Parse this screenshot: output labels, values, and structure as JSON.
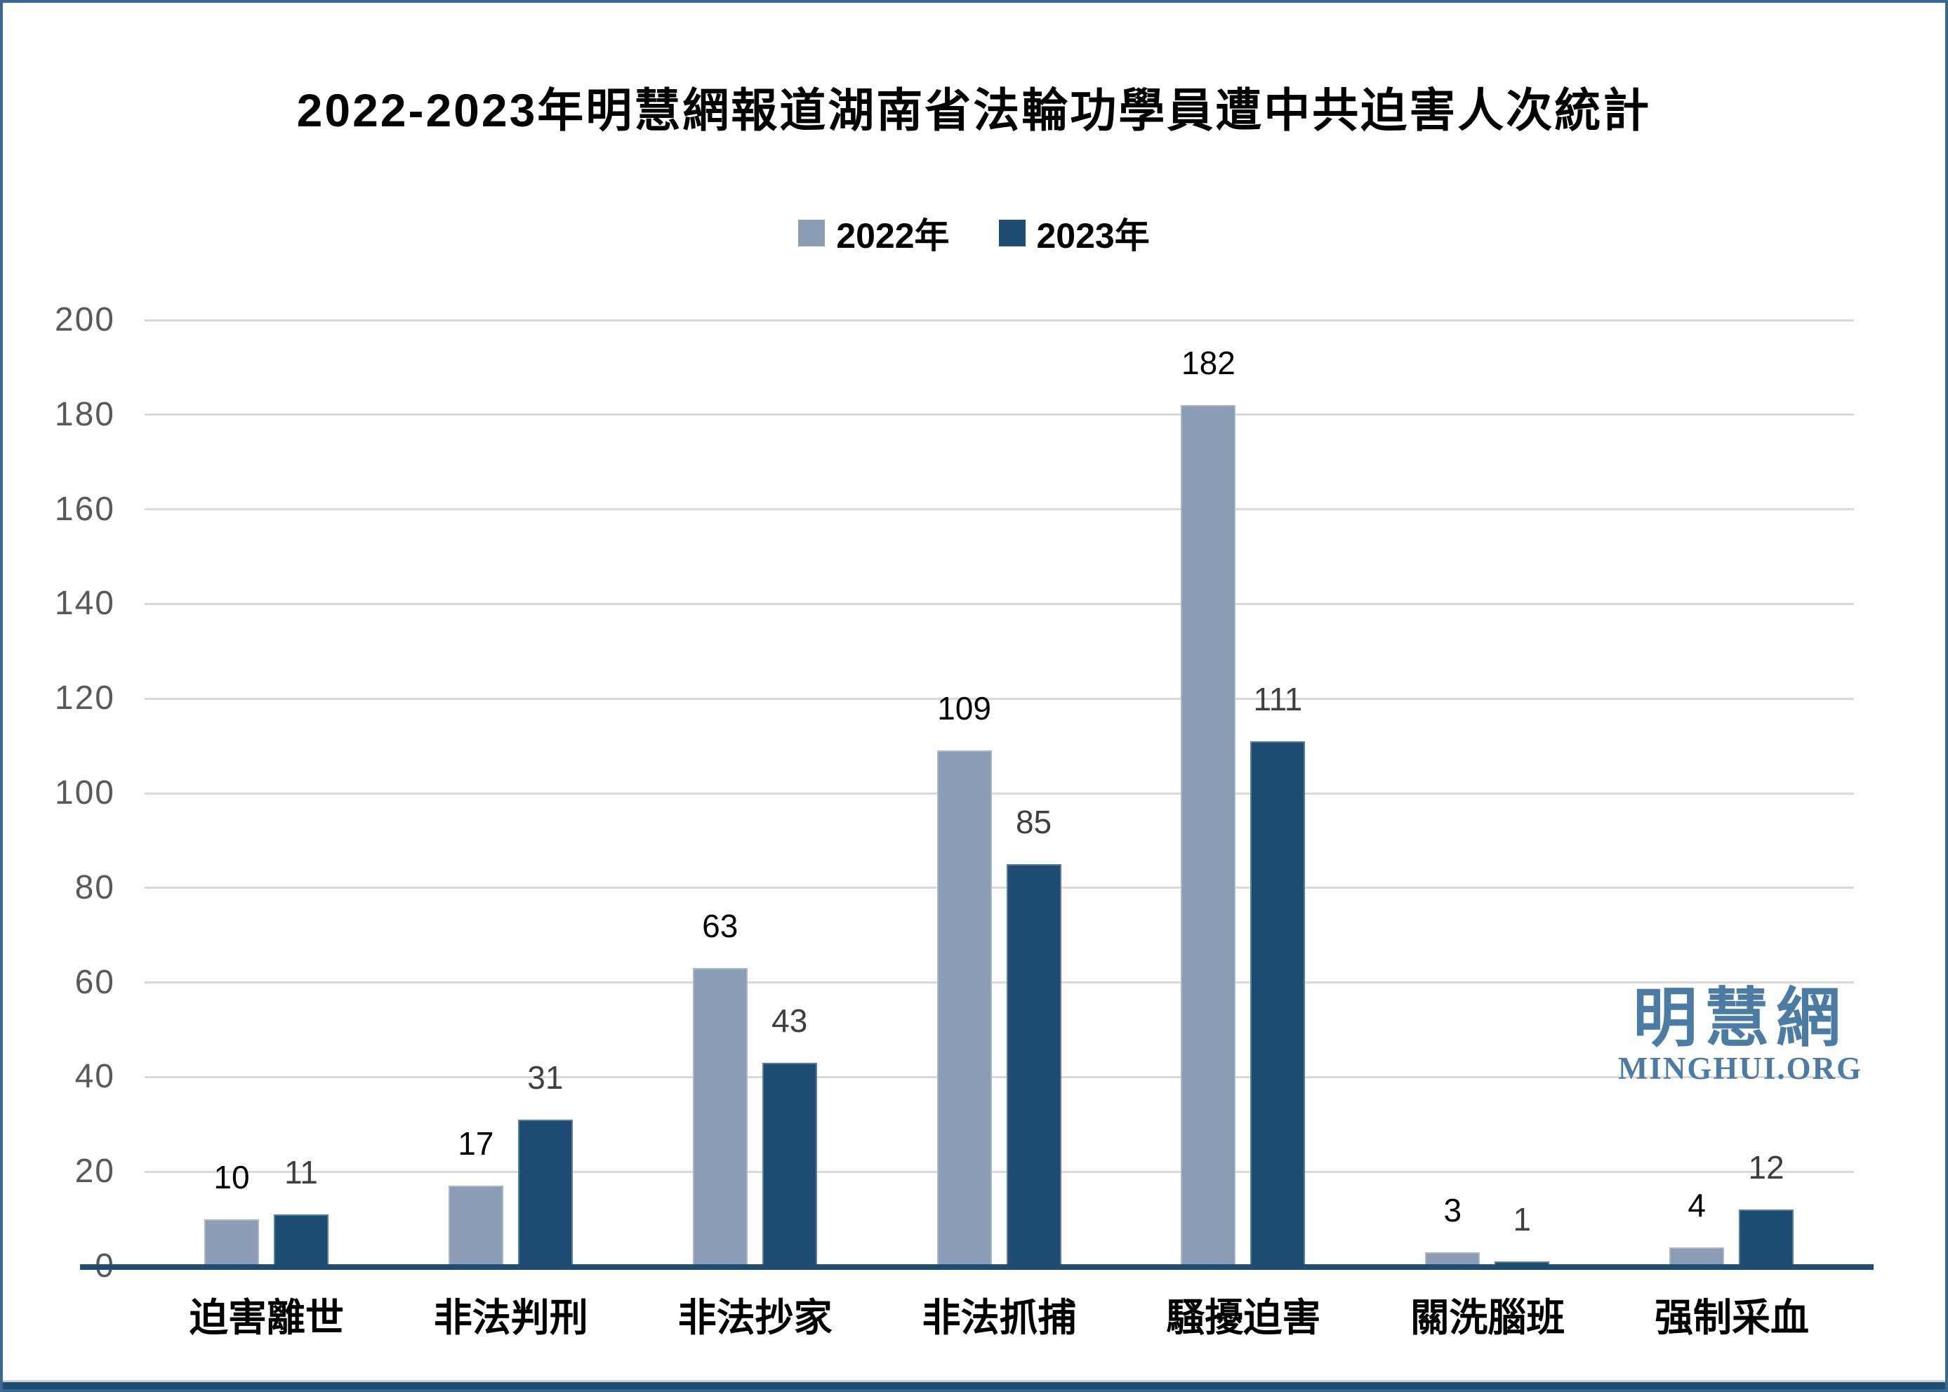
{
  "chart": {
    "title": "2022-2023年明慧網報道湖南省法輪功學員遭中共迫害人次統計"
  },
  "watermark": {
    "chinese": "明慧網",
    "english": "MINGHUI.ORG",
    "color": "#4C7CA3"
  },
  "chart_data": {
    "type": "bar",
    "title": "2022-2023年明慧網報道湖南省法輪功學員遭中共迫害人次統計",
    "categories": [
      "迫害離世",
      "非法判刑",
      "非法抄家",
      "非法抓捕",
      "騷擾迫害",
      "關洗腦班",
      "强制采血"
    ],
    "series": [
      {
        "name": "2022年",
        "color": "#8B9CB5",
        "label_color": "#000000",
        "values": [
          10,
          17,
          63,
          109,
          182,
          3,
          4
        ]
      },
      {
        "name": "2023年",
        "color": "#1F4C72",
        "label_color": "#3F3F3F",
        "values": [
          11,
          31,
          43,
          85,
          111,
          1,
          12
        ]
      }
    ],
    "xlabel": "",
    "ylabel": "",
    "ylim": [
      0,
      200
    ],
    "ytick_step": 20,
    "yticks": [
      0,
      20,
      40,
      60,
      80,
      100,
      120,
      140,
      160,
      180,
      200
    ],
    "grid": true,
    "legend_position": "top",
    "gridline_color": "#D9D9D9",
    "baseline_color": "#1F4C72",
    "axis_tick_color": "#595959"
  }
}
